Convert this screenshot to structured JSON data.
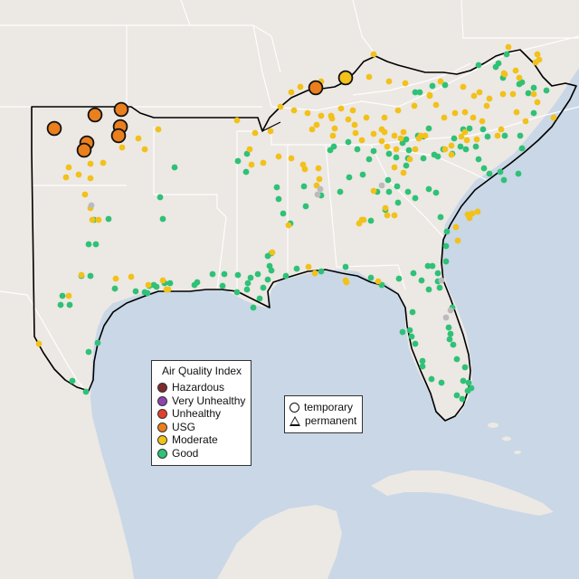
{
  "legend": {
    "title": "Air Quality Index",
    "categories": [
      {
        "label": "Hazardous",
        "color": "#7e2b2b"
      },
      {
        "label": "Very Unhealthy",
        "color": "#8e44ad"
      },
      {
        "label": "Unhealthy",
        "color": "#e0412e"
      },
      {
        "label": "USG",
        "color": "#ea7f1e"
      },
      {
        "label": "Moderate",
        "color": "#f2c11a"
      },
      {
        "label": "Good",
        "color": "#2fc176"
      }
    ]
  },
  "monitor_types": {
    "temporary": "temporary",
    "permanent": "permanent"
  },
  "colors": {
    "ocean": "#c9d7e6",
    "land": "#ece8e4",
    "region_outline": "#000000",
    "state_border": "#ffffff",
    "no_data": "#bbbbbb"
  },
  "region": "Southeastern United States"
}
